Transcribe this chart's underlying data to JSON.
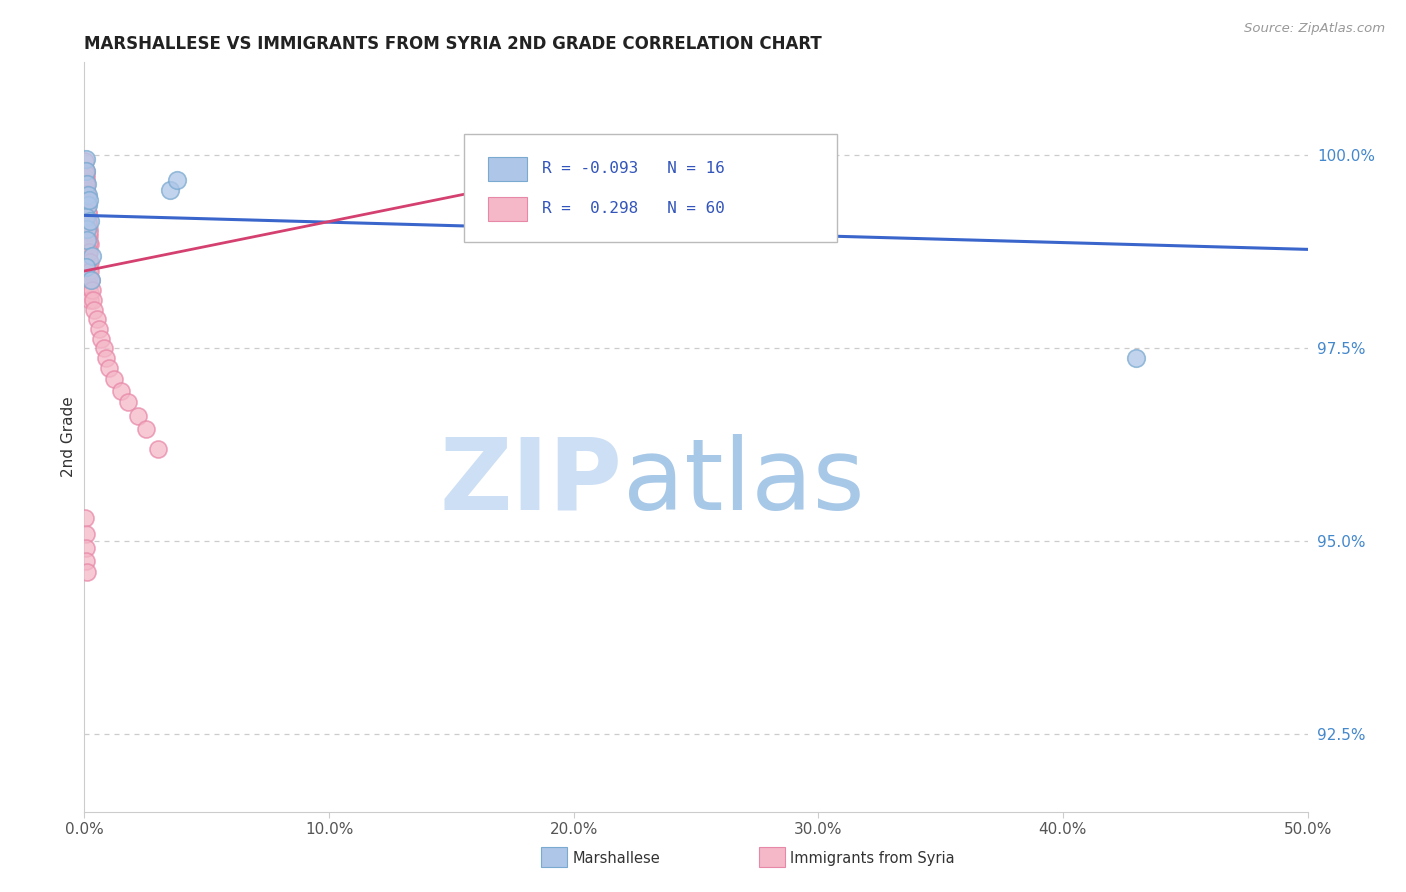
{
  "title": "MARSHALLESE VS IMMIGRANTS FROM SYRIA 2ND GRADE CORRELATION CHART",
  "source": "Source: ZipAtlas.com",
  "ylabel": "2nd Grade",
  "xlim": [
    0.0,
    50.0
  ],
  "ylim": [
    91.5,
    101.2
  ],
  "yticks": [
    92.5,
    95.0,
    97.5,
    100.0
  ],
  "xticks": [
    0.0,
    10.0,
    20.0,
    30.0,
    40.0,
    50.0
  ],
  "xtick_labels": [
    "0.0%",
    "10.0%",
    "20.0%",
    "30.0%",
    "40.0%",
    "50.0%"
  ],
  "ytick_labels": [
    "92.5%",
    "95.0%",
    "97.5%",
    "100.0%"
  ],
  "blue_R": -0.093,
  "blue_N": 16,
  "pink_R": 0.298,
  "pink_N": 60,
  "blue_color": "#aec6e8",
  "pink_color": "#f4b8c8",
  "blue_edge_color": "#7aaad0",
  "pink_edge_color": "#e888a8",
  "blue_line_color": "#3a66cc",
  "pink_line_color": "#d44070",
  "watermark_zip": "ZIP",
  "watermark_atlas": "atlas",
  "watermark_color_zip": "#ccdff5",
  "watermark_color_atlas": "#a8c8e8",
  "legend_label_blue": "Marshallese",
  "legend_label_pink": "Immigrants from Syria",
  "blue_line_x0": 0.0,
  "blue_line_y0": 99.22,
  "blue_line_x1": 50.0,
  "blue_line_y1": 98.78,
  "pink_line_x0": 0.0,
  "pink_line_y0": 98.5,
  "pink_line_x1": 25.0,
  "pink_line_y1": 100.1,
  "blue_scatter_x": [
    0.05,
    0.08,
    0.1,
    0.13,
    0.15,
    0.06,
    0.09,
    0.11,
    0.2,
    0.25,
    0.3,
    0.07,
    3.5,
    3.8,
    0.28,
    43.0
  ],
  "blue_scatter_y": [
    99.95,
    99.8,
    99.62,
    99.48,
    99.35,
    99.2,
    99.05,
    98.9,
    99.42,
    99.15,
    98.7,
    98.55,
    99.55,
    99.68,
    98.38,
    97.38
  ],
  "pink_scatter_x": [
    0.04,
    0.05,
    0.06,
    0.07,
    0.08,
    0.09,
    0.1,
    0.11,
    0.12,
    0.13,
    0.14,
    0.15,
    0.16,
    0.17,
    0.18,
    0.19,
    0.2,
    0.22,
    0.24,
    0.06,
    0.08,
    0.1,
    0.12,
    0.14,
    0.16,
    0.18,
    0.2,
    0.22,
    0.05,
    0.07,
    0.09,
    0.11,
    0.13,
    0.15,
    0.17,
    0.19,
    0.21,
    0.23,
    0.25,
    0.27,
    0.3,
    0.35,
    0.4,
    0.5,
    0.6,
    0.7,
    0.8,
    0.9,
    1.0,
    1.2,
    1.5,
    1.8,
    2.2,
    2.5,
    3.0,
    0.04,
    0.05,
    0.06,
    0.08,
    0.1
  ],
  "pink_scatter_y": [
    99.92,
    99.8,
    99.7,
    99.58,
    99.48,
    99.38,
    99.28,
    99.18,
    99.1,
    99.0,
    98.92,
    98.82,
    98.72,
    98.62,
    98.52,
    98.42,
    98.32,
    98.22,
    98.12,
    99.65,
    99.55,
    99.45,
    99.35,
    99.25,
    99.15,
    99.05,
    98.95,
    98.85,
    99.75,
    99.62,
    99.5,
    99.38,
    99.25,
    99.12,
    99.0,
    98.88,
    98.75,
    98.62,
    98.5,
    98.38,
    98.25,
    98.12,
    98.0,
    97.88,
    97.75,
    97.62,
    97.5,
    97.38,
    97.25,
    97.1,
    96.95,
    96.8,
    96.62,
    96.45,
    96.2,
    95.3,
    95.1,
    94.92,
    94.75,
    94.6
  ]
}
